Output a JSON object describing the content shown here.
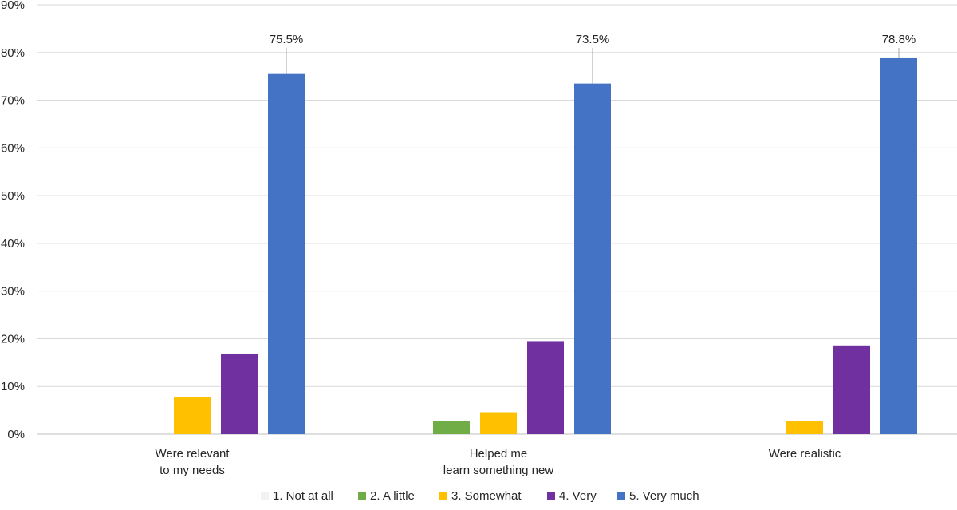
{
  "chart_data": {
    "type": "bar",
    "categories": [
      [
        "Were relevant",
        "to my needs"
      ],
      [
        "Helped me",
        "learn something new"
      ],
      [
        "Were realistic"
      ]
    ],
    "series": [
      {
        "name": "1. Not at all",
        "color": "#f2f2f2",
        "values": [
          0,
          0,
          0
        ]
      },
      {
        "name": "2. A little",
        "color": "#70ad47",
        "values": [
          0,
          2.7,
          0
        ]
      },
      {
        "name": "3. Somewhat",
        "color": "#ffc000",
        "values": [
          7.8,
          4.6,
          2.7
        ]
      },
      {
        "name": "4. Very",
        "color": "#7030a0",
        "values": [
          16.9,
          19.5,
          18.6
        ]
      },
      {
        "name": "5. Very much",
        "color": "#4472c4",
        "values": [
          75.5,
          73.5,
          78.8
        ]
      }
    ],
    "data_labels": [
      {
        "series": 4,
        "category": 0,
        "text": "75.5%"
      },
      {
        "series": 4,
        "category": 1,
        "text": "73.5%"
      },
      {
        "series": 4,
        "category": 2,
        "text": "78.8%"
      }
    ],
    "ylim": [
      0,
      90
    ],
    "ytick_step": 10,
    "ytick_suffix": "%",
    "grid": true,
    "legend_position": "bottom",
    "title": "",
    "xlabel": "",
    "ylabel": ""
  }
}
